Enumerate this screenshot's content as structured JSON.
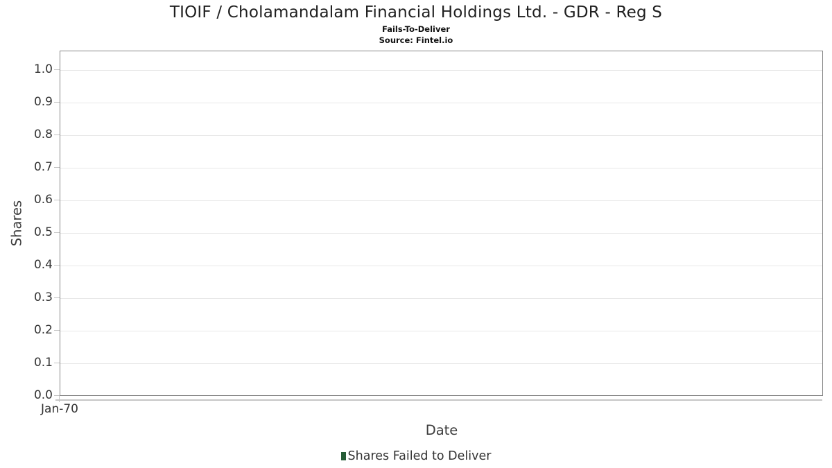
{
  "header": {
    "title": "TIOIF / Cholamandalam Financial Holdings Ltd. - GDR - Reg S",
    "subtitle": "Fails-To-Deliver",
    "source": "Source: Fintel.io"
  },
  "chart_data": {
    "type": "bar",
    "title": "TIOIF / Cholamandalam Financial Holdings Ltd. - GDR - Reg S",
    "subtitle": "Fails-To-Deliver",
    "source": "Source: Fintel.io",
    "xlabel": "Date",
    "ylabel": "Shares",
    "x_ticks": [
      "Jan-70"
    ],
    "y_ticks": [
      "0.0",
      "0.1",
      "0.2",
      "0.3",
      "0.4",
      "0.5",
      "0.6",
      "0.7",
      "0.8",
      "0.9",
      "1.0"
    ],
    "ylim": [
      0.0,
      1.06
    ],
    "grid": "horizontal",
    "legend_position": "bottom",
    "series": [
      {
        "name": "Shares Failed to Deliver",
        "color": "#265c36",
        "x": [],
        "values": []
      }
    ]
  }
}
